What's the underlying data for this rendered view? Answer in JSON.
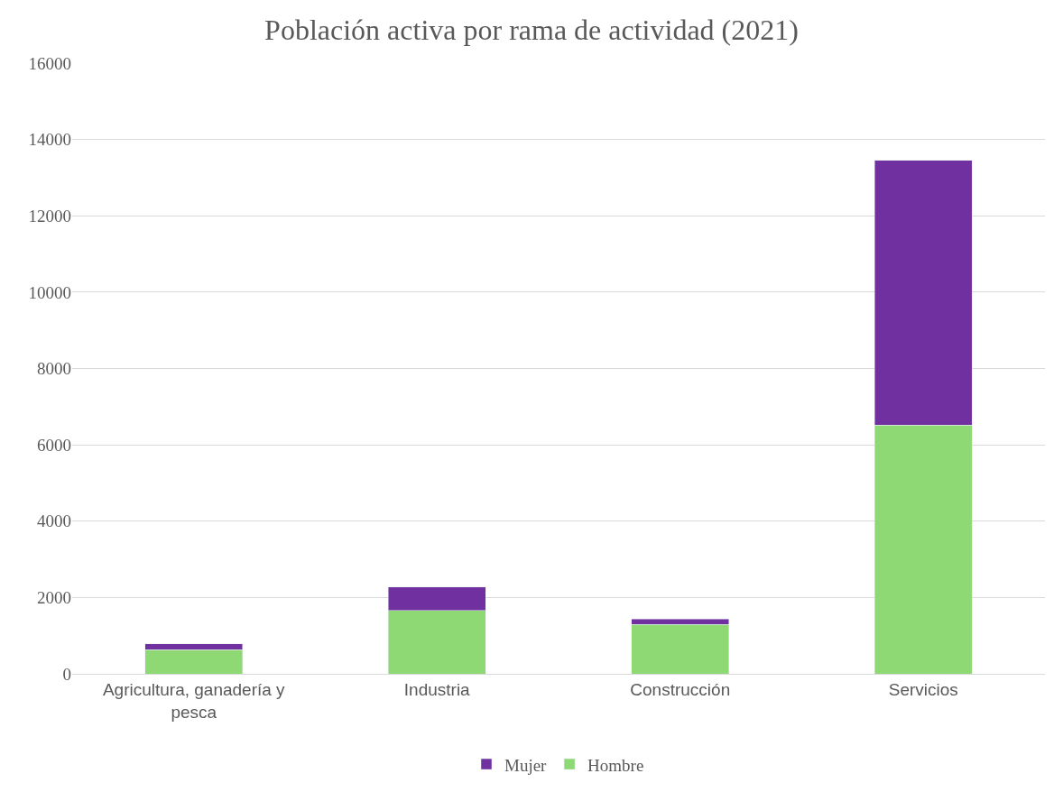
{
  "chart_data": {
    "type": "bar",
    "title": "Población activa por rama de actividad (2021)",
    "categories": [
      "Agricultura, ganadería y pesca",
      "Industria",
      "Construcción",
      "Servicios"
    ],
    "stacked": true,
    "series": [
      {
        "name": "Hombre",
        "color": "#8fd974",
        "values": [
          630,
          1660,
          1290,
          6520
        ]
      },
      {
        "name": "Mujer",
        "color": "#7030a0",
        "values": [
          160,
          610,
          140,
          6930
        ]
      }
    ],
    "ylim": [
      0,
      16000
    ],
    "yticks": [
      0,
      2000,
      4000,
      6000,
      8000,
      10000,
      12000,
      14000,
      16000
    ],
    "grid": "y",
    "legend": "bottom"
  }
}
